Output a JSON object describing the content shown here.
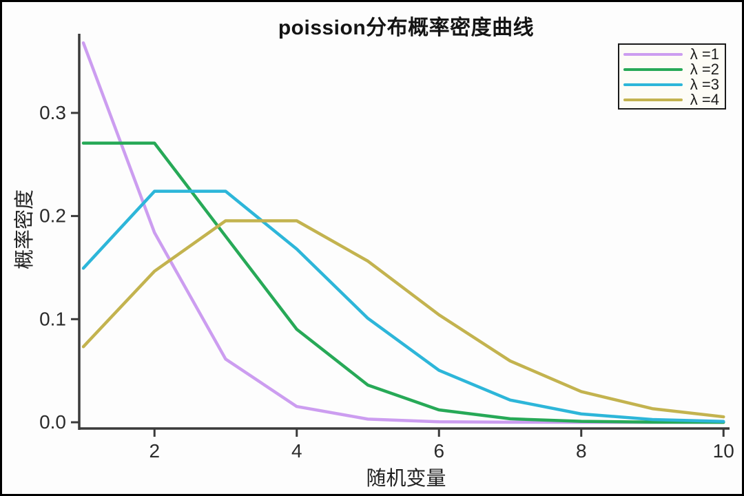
{
  "figure": {
    "background_color": "#fdfdfd",
    "frame_color": "#000000"
  },
  "chart_data": {
    "type": "line",
    "title": "poission分布概率密度曲线",
    "xlabel": "随机变量",
    "ylabel": "概率密度",
    "x": [
      1,
      2,
      3,
      4,
      5,
      6,
      7,
      8,
      9,
      10
    ],
    "series": [
      {
        "name": "λ =1",
        "color": "#cc9df0",
        "values": [
          0.3679,
          0.1839,
          0.0613,
          0.0153,
          0.0031,
          0.0005,
          0.0001,
          0.0,
          0.0,
          0.0
        ]
      },
      {
        "name": "λ =2",
        "color": "#27a957",
        "values": [
          0.2707,
          0.2707,
          0.1804,
          0.0902,
          0.0361,
          0.012,
          0.0034,
          0.0009,
          0.0002,
          0.0
        ]
      },
      {
        "name": "λ =3",
        "color": "#2db6d9",
        "values": [
          0.1494,
          0.224,
          0.224,
          0.168,
          0.1008,
          0.0504,
          0.0216,
          0.0081,
          0.0027,
          0.0008
        ]
      },
      {
        "name": "λ =4",
        "color": "#c3b34f",
        "values": [
          0.0733,
          0.1465,
          0.1954,
          0.1954,
          0.1563,
          0.1042,
          0.0595,
          0.0298,
          0.0132,
          0.0053
        ]
      }
    ],
    "xlim": [
      1,
      10
    ],
    "ylim": [
      0,
      0.375
    ],
    "xticks": [
      {
        "value": 2,
        "label": "2"
      },
      {
        "value": 4,
        "label": "4"
      },
      {
        "value": 6,
        "label": "6"
      },
      {
        "value": 8,
        "label": "8"
      },
      {
        "value": 10,
        "label": "10"
      }
    ],
    "yticks": [
      {
        "value": 0.0,
        "label": "0.0"
      },
      {
        "value": 0.1,
        "label": "0.1"
      },
      {
        "value": 0.2,
        "label": "0.2"
      },
      {
        "value": 0.3,
        "label": "0.3"
      }
    ],
    "grid": false,
    "legend_position": "top-right",
    "axis_color": "#3a3a3a",
    "tick_label_color": "#2b2b2b"
  }
}
